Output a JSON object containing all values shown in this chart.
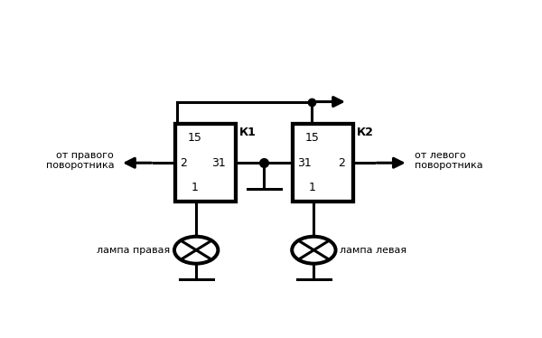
{
  "bg_color": "#ffffff",
  "line_color": "#000000",
  "label_K1": "К1",
  "label_K2": "К2",
  "label_left": "от правого\nповоротника",
  "label_right": "от левого\nповоротника",
  "label_lamp_left": "лампа правая",
  "label_lamp_right": "лампа левая",
  "b1x": 0.255,
  "b1y": 0.38,
  "b1w": 0.145,
  "b1h": 0.3,
  "b2x": 0.535,
  "b2y": 0.38,
  "b2w": 0.145,
  "b2h": 0.3,
  "fs_inner": 9,
  "fs_label": 9,
  "fs_text": 8
}
